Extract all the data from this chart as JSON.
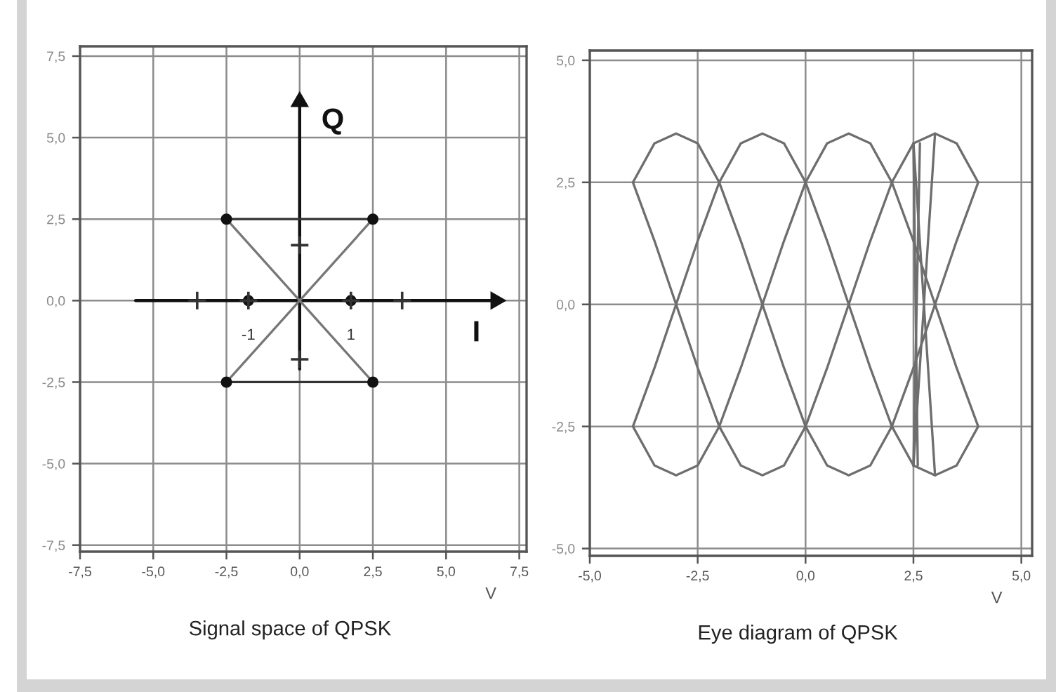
{
  "chart_data": [
    {
      "type": "line",
      "title": "Signal space of QPSK",
      "xlabel": "V",
      "xlim": [
        -7.5,
        7.75
      ],
      "ylim": [
        -7.7,
        7.8
      ],
      "xticks": [
        {
          "value": -7.5,
          "label": "-7,5"
        },
        {
          "value": -5,
          "label": "-5,0"
        },
        {
          "value": -2.5,
          "label": "-2,5"
        },
        {
          "value": 0,
          "label": "0,0"
        },
        {
          "value": 2.5,
          "label": "2,5"
        },
        {
          "value": 5,
          "label": "5,0"
        },
        {
          "value": 7.5,
          "label": "7,5"
        }
      ],
      "yticks": [
        {
          "value": -7.5,
          "label": "-7,5"
        },
        {
          "value": -5,
          "label": "-5,0"
        },
        {
          "value": -2.5,
          "label": "-2,5"
        },
        {
          "value": 0,
          "label": "0,0"
        },
        {
          "value": 2.5,
          "label": "2,5"
        },
        {
          "value": 5,
          "label": "5,0"
        },
        {
          "value": 7.5,
          "label": "7,5"
        }
      ],
      "grid": true,
      "series": [
        {
          "name": "I",
          "type": "line",
          "color": "#111111",
          "marker": "triangle",
          "x": [
            -5.6,
            6.7
          ],
          "values": [
            0,
            0
          ]
        },
        {
          "name": "Q",
          "type": "line",
          "color": "#111111",
          "marker": "triangle",
          "x": [
            0,
            0
          ],
          "values": [
            -2.1,
            6.1
          ]
        },
        {
          "type": "line",
          "color": "#333333",
          "x": [
            -2.5,
            2.5
          ],
          "values": [
            2.5,
            2.5
          ]
        },
        {
          "type": "line",
          "color": "#333333",
          "x": [
            -2.5,
            2.5
          ],
          "values": [
            -2.5,
            -2.5
          ]
        },
        {
          "type": "line",
          "color": "#777777",
          "x": [
            -2.5,
            2.5
          ],
          "values": [
            2.5,
            -2.5
          ]
        },
        {
          "type": "line",
          "color": "#777777",
          "x": [
            -2.5,
            2.5
          ],
          "values": [
            -2.5,
            2.5
          ]
        },
        {
          "type": "scatter",
          "color": "#111111",
          "marker": "circle",
          "x": [
            -2.5,
            2.5,
            2.5,
            -2.5,
            -1.75,
            1.75
          ],
          "values": [
            2.5,
            2.5,
            -2.5,
            -2.5,
            0,
            0
          ]
        },
        {
          "type": "scatter",
          "color": "#333333",
          "marker": "cross",
          "x": [
            -3.5,
            -1.75,
            1.75,
            3.5,
            0,
            0
          ],
          "values": [
            0,
            0,
            0,
            0,
            1.7,
            -1.8
          ]
        }
      ],
      "annotations": [
        {
          "text": "-1",
          "x": -1.75,
          "y": 0
        },
        {
          "text": "1",
          "x": 1.75,
          "y": 0
        }
      ]
    },
    {
      "type": "line",
      "title": "Eye diagram of QPSK",
      "xlabel": "V",
      "xlim": [
        -5,
        5.25
      ],
      "ylim": [
        -5.15,
        5.2
      ],
      "xticks": [
        {
          "value": -5,
          "label": "-5,0"
        },
        {
          "value": -2.5,
          "label": "-2,5"
        },
        {
          "value": 0,
          "label": "0,0"
        },
        {
          "value": 2.5,
          "label": "2,5"
        },
        {
          "value": 5,
          "label": "5,0"
        }
      ],
      "yticks": [
        {
          "value": -5,
          "label": "-5,0"
        },
        {
          "value": -2.5,
          "label": "-2,5"
        },
        {
          "value": 0,
          "label": "0,0"
        },
        {
          "value": 2.5,
          "label": "2,5"
        },
        {
          "value": 5,
          "label": "5,0"
        }
      ],
      "grid": true,
      "x": [
        -4,
        -3.5,
        -3,
        -2.5,
        -2,
        -1.5,
        -1,
        -0.5,
        0,
        0.5,
        1,
        1.5,
        2,
        2.5,
        3,
        3.5,
        4
      ],
      "series": [
        {
          "color": "#6e6e6e",
          "values": [
            2.5,
            3.3,
            3.5,
            3.3,
            2.5,
            3.3,
            3.5,
            3.3,
            2.5,
            3.3,
            3.5,
            3.3,
            2.5,
            3.3,
            3.5,
            3.3,
            2.5
          ]
        },
        {
          "color": "#6e6e6e",
          "values": [
            -2.5,
            -3.3,
            -3.5,
            -3.3,
            -2.5,
            -3.3,
            -3.5,
            -3.3,
            -2.5,
            -3.3,
            -3.5,
            -3.3,
            -2.5,
            -3.3,
            -3.5,
            -3.3,
            -2.5
          ]
        },
        {
          "color": "#6e6e6e",
          "values": [
            2.5,
            1.3,
            0,
            -1.3,
            -2.5,
            -1.3,
            0,
            1.3,
            2.5,
            1.3,
            0,
            -1.3,
            -2.5,
            -1.3,
            0,
            1.3,
            2.5
          ]
        },
        {
          "color": "#6e6e6e",
          "values": [
            -2.5,
            -1.3,
            0,
            1.3,
            2.5,
            1.3,
            0,
            -1.3,
            -2.5,
            -1.3,
            0,
            1.3,
            2.5,
            1.3,
            0,
            -1.3,
            -2.5
          ]
        },
        {
          "color": "#6e6e6e",
          "x": [
            2.5,
            3
          ],
          "values": [
            3.3,
            -3.5
          ]
        },
        {
          "color": "#6e6e6e",
          "x": [
            2.5,
            3
          ],
          "values": [
            -3.3,
            3.5
          ]
        },
        {
          "color": "#6e6e6e",
          "x": [
            2.5,
            2.6
          ],
          "values": [
            3.3,
            -3.3
          ]
        },
        {
          "color": "#6e6e6e",
          "x": [
            2.5,
            2.65
          ],
          "values": [
            -3.3,
            3.3
          ]
        }
      ]
    }
  ]
}
